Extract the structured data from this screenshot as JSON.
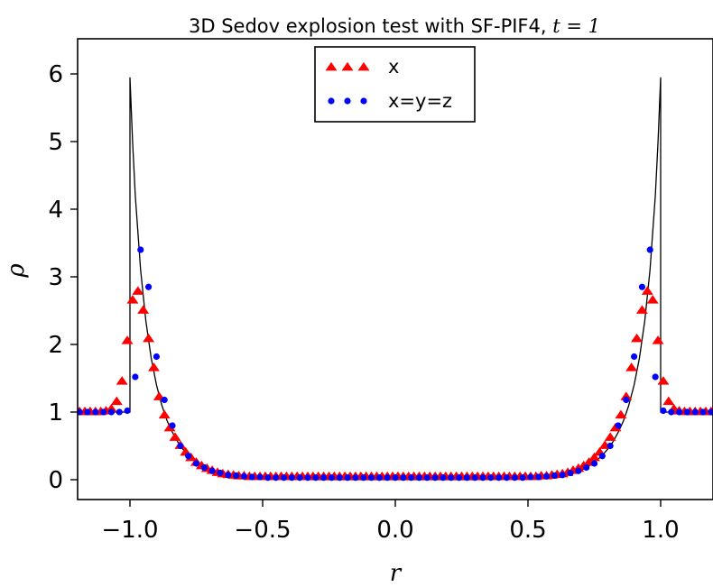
{
  "chart_data": {
    "type": "scatter",
    "title": "3D Sedov explosion test with SF-PIF4, ",
    "title_math": "t = 1",
    "xlabel": "r",
    "ylabel": "ρ",
    "xlim": [
      -1.2,
      1.2
    ],
    "ylim": [
      -0.3,
      6.45
    ],
    "xticks": [
      -1.0,
      -0.5,
      0.0,
      0.5,
      1.0
    ],
    "xtick_labels": [
      "−1.0",
      "−0.5",
      "0.0",
      "0.5",
      "1.0"
    ],
    "yticks": [
      0,
      1,
      2,
      3,
      4,
      5,
      6
    ],
    "ytick_labels": [
      "0",
      "1",
      "2",
      "3",
      "4",
      "5",
      "6"
    ],
    "grid": false,
    "legend_position": "top-center",
    "series": [
      {
        "name": "x",
        "marker": "triangle",
        "color": "#ff0000",
        "x": [
          -1.19,
          -1.17,
          -1.15,
          -1.13,
          -1.11,
          -1.09,
          -1.07,
          -1.05,
          -1.03,
          -1.01,
          -0.99,
          -0.97,
          -0.95,
          -0.93,
          -0.91,
          -0.89,
          -0.87,
          -0.85,
          -0.83,
          -0.81,
          -0.79,
          -0.77,
          -0.75,
          -0.73,
          -0.71,
          -0.69,
          -0.67,
          -0.65,
          -0.63,
          -0.61,
          -0.59,
          -0.57,
          -0.55,
          -0.53,
          -0.51,
          -0.49,
          -0.47,
          -0.45,
          -0.43,
          -0.41,
          -0.39,
          -0.37,
          -0.35,
          -0.33,
          -0.31,
          -0.29,
          -0.27,
          -0.25,
          -0.23,
          -0.21,
          -0.19,
          -0.17,
          -0.15,
          -0.13,
          -0.11,
          -0.09,
          -0.07,
          -0.05,
          -0.03,
          -0.01,
          0.01,
          0.03,
          0.05,
          0.07,
          0.09,
          0.11,
          0.13,
          0.15,
          0.17,
          0.19,
          0.21,
          0.23,
          0.25,
          0.27,
          0.29,
          0.31,
          0.33,
          0.35,
          0.37,
          0.39,
          0.41,
          0.43,
          0.45,
          0.47,
          0.49,
          0.51,
          0.53,
          0.55,
          0.57,
          0.59,
          0.61,
          0.63,
          0.65,
          0.67,
          0.69,
          0.71,
          0.73,
          0.75,
          0.77,
          0.79,
          0.81,
          0.83,
          0.85,
          0.87,
          0.89,
          0.91,
          0.93,
          0.95,
          0.97,
          0.99,
          1.01,
          1.03,
          1.05,
          1.07,
          1.09,
          1.11,
          1.13,
          1.15,
          1.17,
          1.19
        ],
        "y": [
          1.0,
          1.0,
          1.0,
          1.0,
          1.0,
          1.01,
          1.04,
          1.15,
          1.45,
          2.05,
          2.65,
          2.78,
          2.5,
          2.08,
          1.65,
          1.22,
          0.95,
          0.76,
          0.62,
          0.5,
          0.4,
          0.32,
          0.25,
          0.2,
          0.16,
          0.13,
          0.1,
          0.08,
          0.07,
          0.06,
          0.05,
          0.05,
          0.04,
          0.04,
          0.04,
          0.04,
          0.04,
          0.04,
          0.04,
          0.04,
          0.04,
          0.04,
          0.04,
          0.04,
          0.04,
          0.04,
          0.04,
          0.04,
          0.04,
          0.04,
          0.04,
          0.04,
          0.04,
          0.04,
          0.04,
          0.04,
          0.04,
          0.04,
          0.04,
          0.04,
          0.04,
          0.04,
          0.04,
          0.04,
          0.04,
          0.04,
          0.04,
          0.04,
          0.04,
          0.04,
          0.04,
          0.04,
          0.04,
          0.04,
          0.04,
          0.04,
          0.04,
          0.04,
          0.04,
          0.04,
          0.04,
          0.04,
          0.04,
          0.04,
          0.04,
          0.04,
          0.04,
          0.05,
          0.05,
          0.06,
          0.07,
          0.08,
          0.1,
          0.13,
          0.16,
          0.2,
          0.25,
          0.32,
          0.4,
          0.5,
          0.62,
          0.76,
          0.95,
          1.22,
          1.65,
          2.08,
          2.5,
          2.78,
          2.65,
          2.05,
          1.45,
          1.15,
          1.04,
          1.01,
          1.0,
          1.0,
          1.0,
          1.0,
          1.0,
          1.0
        ]
      },
      {
        "name": "x=y=z",
        "marker": "circle",
        "color": "#0000ff",
        "x": [
          -1.19,
          -1.16,
          -1.13,
          -1.1,
          -1.07,
          -1.04,
          -1.01,
          -0.98,
          -0.96,
          -0.93,
          -0.9,
          -0.87,
          -0.84,
          -0.81,
          -0.78,
          -0.75,
          -0.72,
          -0.69,
          -0.66,
          -0.63,
          -0.6,
          -0.57,
          -0.54,
          -0.51,
          -0.48,
          -0.45,
          -0.42,
          -0.39,
          -0.36,
          -0.33,
          -0.3,
          -0.27,
          -0.24,
          -0.21,
          -0.18,
          -0.15,
          -0.12,
          -0.09,
          -0.06,
          -0.03,
          0.0,
          0.03,
          0.06,
          0.09,
          0.12,
          0.15,
          0.18,
          0.21,
          0.24,
          0.27,
          0.3,
          0.33,
          0.36,
          0.39,
          0.42,
          0.45,
          0.48,
          0.51,
          0.54,
          0.57,
          0.6,
          0.63,
          0.66,
          0.69,
          0.72,
          0.75,
          0.78,
          0.81,
          0.84,
          0.87,
          0.9,
          0.93,
          0.96,
          0.98,
          1.01,
          1.04,
          1.07,
          1.1,
          1.13,
          1.16,
          1.19
        ],
        "y": [
          1.0,
          1.0,
          1.0,
          1.0,
          1.0,
          1.0,
          1.02,
          1.52,
          3.4,
          2.85,
          1.82,
          1.18,
          0.8,
          0.5,
          0.35,
          0.24,
          0.18,
          0.13,
          0.1,
          0.07,
          0.06,
          0.05,
          0.04,
          0.04,
          0.03,
          0.03,
          0.03,
          0.03,
          0.03,
          0.03,
          0.03,
          0.03,
          0.03,
          0.03,
          0.03,
          0.03,
          0.03,
          0.03,
          0.03,
          0.03,
          0.03,
          0.03,
          0.03,
          0.03,
          0.03,
          0.03,
          0.03,
          0.03,
          0.03,
          0.03,
          0.03,
          0.03,
          0.03,
          0.03,
          0.03,
          0.03,
          0.03,
          0.04,
          0.04,
          0.05,
          0.06,
          0.07,
          0.1,
          0.13,
          0.18,
          0.24,
          0.35,
          0.5,
          0.8,
          1.18,
          1.82,
          2.85,
          3.4,
          1.52,
          1.02,
          1.0,
          1.0,
          1.0,
          1.0,
          1.0,
          1.0
        ]
      },
      {
        "name": "",
        "marker": "line",
        "color": "#000000",
        "x": [
          -1.2,
          -1.0,
          -1.0,
          -0.99,
          -0.98,
          -0.96,
          -0.94,
          -0.92,
          -0.9,
          -0.88,
          -0.86,
          -0.84,
          -0.82,
          -0.8,
          -0.78,
          -0.76,
          -0.74,
          -0.72,
          -0.7,
          -0.67,
          -0.64,
          -0.6,
          -0.55,
          -0.5,
          -0.4,
          -0.3,
          0.0,
          0.3,
          0.4,
          0.5,
          0.55,
          0.6,
          0.64,
          0.67,
          0.7,
          0.72,
          0.74,
          0.76,
          0.78,
          0.8,
          0.82,
          0.84,
          0.86,
          0.88,
          0.9,
          0.92,
          0.94,
          0.96,
          0.98,
          0.99,
          1.0,
          1.0,
          1.2
        ],
        "y": [
          1.0,
          1.0,
          5.95,
          5.0,
          4.2,
          3.1,
          2.35,
          1.8,
          1.4,
          1.1,
          0.87,
          0.7,
          0.56,
          0.45,
          0.36,
          0.29,
          0.23,
          0.18,
          0.14,
          0.1,
          0.07,
          0.045,
          0.025,
          0.015,
          0.005,
          0.0,
          0.0,
          0.0,
          0.005,
          0.015,
          0.025,
          0.045,
          0.07,
          0.1,
          0.14,
          0.18,
          0.23,
          0.29,
          0.36,
          0.45,
          0.56,
          0.7,
          0.87,
          1.1,
          1.4,
          1.8,
          2.35,
          3.1,
          4.2,
          5.0,
          5.95,
          1.0,
          1.0
        ]
      }
    ]
  }
}
